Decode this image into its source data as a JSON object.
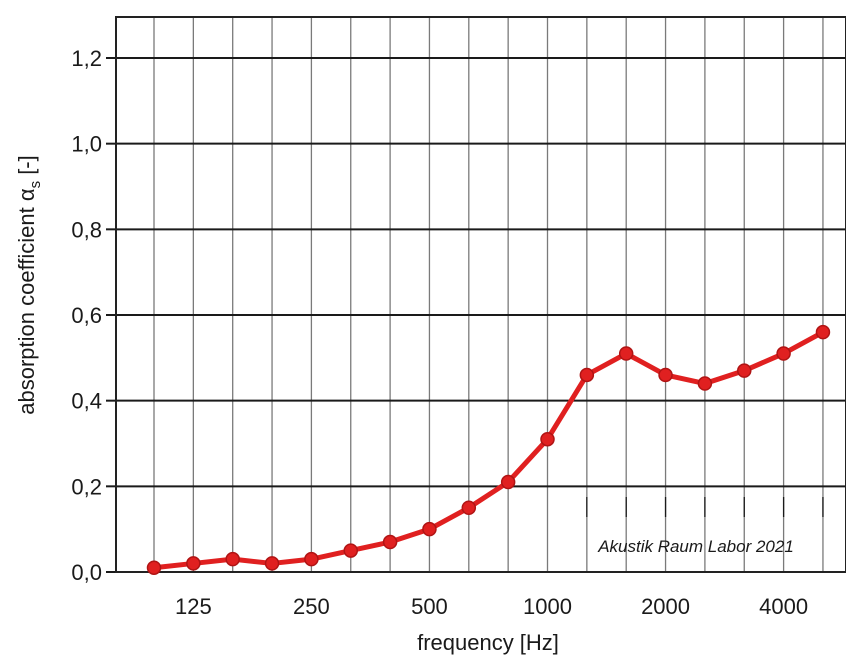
{
  "chart_data": {
    "type": "line",
    "xlabel": "frequency [Hz]",
    "ylabel": "absorption coefficient α",
    "ylabel_subscript": "s",
    "ylabel_suffix": " [-]",
    "annotation": "Akustik Raum Labor 2021",
    "x": [
      100,
      125,
      160,
      200,
      250,
      315,
      400,
      500,
      630,
      800,
      1000,
      1250,
      1600,
      2000,
      2500,
      3150,
      4000,
      5000
    ],
    "x_tick_labels": [
      "125",
      "250",
      "500",
      "1000",
      "2000",
      "4000"
    ],
    "y_tick_labels": [
      "0,0",
      "0,2",
      "0,4",
      "0,6",
      "0,8",
      "1,0",
      "1,2"
    ],
    "ylim": [
      0,
      1.2
    ],
    "grid": true,
    "series": [
      {
        "values": [
          0.01,
          0.02,
          0.03,
          0.02,
          0.03,
          0.05,
          0.07,
          0.1,
          0.15,
          0.21,
          0.31,
          0.46,
          0.51,
          0.46,
          0.44,
          0.47,
          0.51,
          0.56
        ],
        "color": "#e02020"
      }
    ]
  }
}
